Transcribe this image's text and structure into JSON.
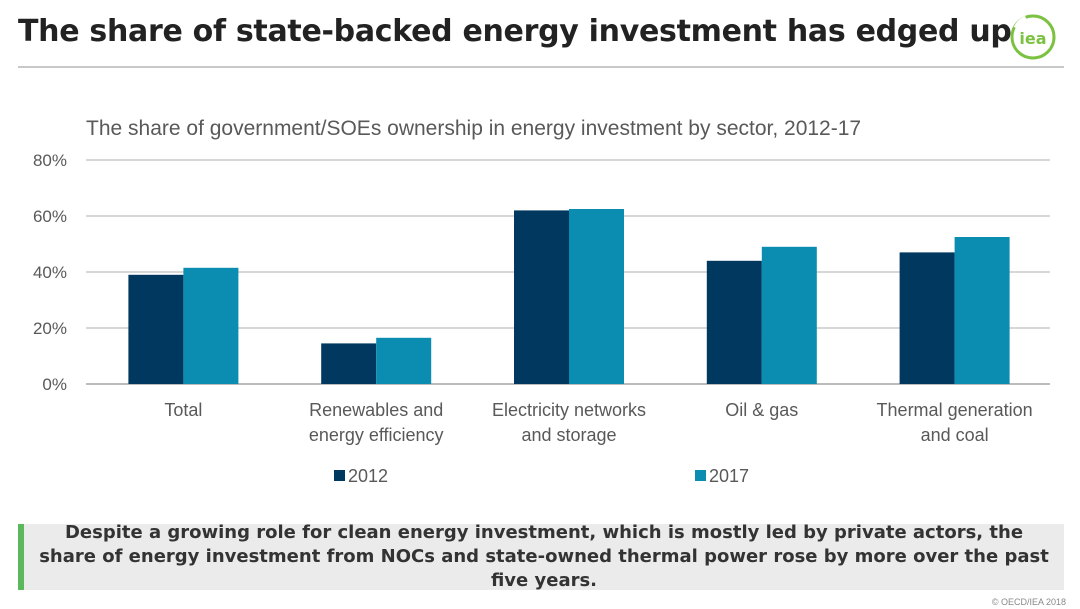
{
  "page": {
    "title": "The share of state-backed energy investment has edged up",
    "logo_text": "iea",
    "callout": "Despite a growing role for clean energy investment, which is mostly led by private actors, the share of energy investment from NOCs and state-owned thermal power rose by more over the past five years.",
    "copyright": "© OECD/IEA 2018"
  },
  "colors": {
    "series_2012": "#00385f",
    "series_2017": "#0a8db0",
    "accent_green": "#5cb85c",
    "grid": "#bfbfbf"
  },
  "chart_data": {
    "type": "bar",
    "title": "The share of government/SOEs ownership in energy investment by sector, 2012-17",
    "categories": [
      [
        "Total"
      ],
      [
        "Renewables and",
        "energy efficiency"
      ],
      [
        "Electricity networks",
        "and storage"
      ],
      [
        "Oil & gas"
      ],
      [
        "Thermal generation",
        "and coal"
      ]
    ],
    "series": [
      {
        "name": "2012",
        "values": [
          39,
          14.5,
          62,
          44,
          47
        ]
      },
      {
        "name": "2017",
        "values": [
          41.5,
          16.5,
          62.5,
          49,
          52.5
        ]
      }
    ],
    "ylim": [
      0,
      80
    ],
    "yticks": [
      0,
      20,
      40,
      60,
      80
    ],
    "ytick_labels": [
      "0%",
      "20%",
      "40%",
      "60%",
      "80%"
    ],
    "xlabel": "",
    "ylabel": "",
    "legend_position": "bottom"
  }
}
